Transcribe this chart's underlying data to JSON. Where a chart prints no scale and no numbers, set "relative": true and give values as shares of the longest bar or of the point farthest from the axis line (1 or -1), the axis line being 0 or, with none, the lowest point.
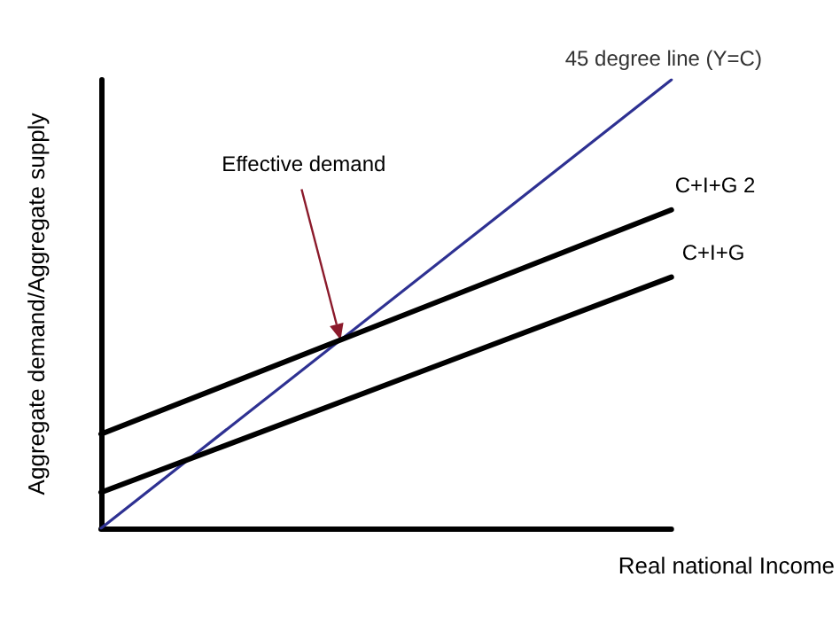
{
  "chart_data": {
    "type": "line",
    "relative": true,
    "categories": [
      null,
      null
    ],
    "ylabel": "Aggregate demand/Aggregate supply",
    "xlabel": "Real national Income",
    "annotations": [
      "Effective demand"
    ],
    "series": [
      {
        "name": "45 degree line (Y=C)",
        "color": "#2e3192",
        "values": [
          0,
          1
        ]
      },
      {
        "name": "C+I+G 2",
        "color": "#000000",
        "values": [
          0.21,
          0.71
        ]
      },
      {
        "name": "C+I+G",
        "color": "#000000",
        "values": [
          0.08,
          0.56
        ]
      }
    ],
    "grid": false,
    "legend": false,
    "marker": "none",
    "line_style": "solid"
  }
}
